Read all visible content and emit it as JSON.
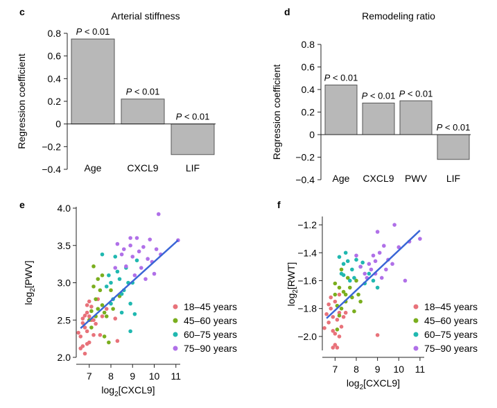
{
  "chart_data": [
    {
      "panel": "c",
      "type": "bar",
      "title": "Arterial stiffness",
      "ylabel": "Regression coefficient",
      "categories": [
        "Age",
        "CXCL9",
        "LIF"
      ],
      "values": [
        0.75,
        0.22,
        -0.27
      ],
      "annotations": [
        "P < 0.01",
        "P < 0.01",
        "P < 0.01"
      ],
      "yticks": [
        "−0.4",
        "−0.2",
        "0",
        "0.2",
        "0.4",
        "0.6",
        "0.8"
      ],
      "ylim": [
        -0.4,
        0.8
      ],
      "bar_color": "#b8b8b8"
    },
    {
      "panel": "d",
      "type": "bar",
      "title": "Remodeling ratio",
      "ylabel": "Regression coefficient",
      "categories": [
        "Age",
        "CXCL9",
        "PWV",
        "LIF"
      ],
      "values": [
        0.44,
        0.28,
        0.3,
        -0.22
      ],
      "annotations": [
        "P < 0.01",
        "P < 0.01",
        "P < 0.01",
        "P < 0.01"
      ],
      "yticks": [
        "−0.4",
        "−0.2",
        "0",
        "0.2",
        "0.4",
        "0.6",
        "0.8"
      ],
      "ylim": [
        -0.4,
        0.8
      ],
      "bar_color": "#b8b8b8"
    },
    {
      "panel": "e",
      "type": "scatter",
      "xlabel": "log2[CXCL9]",
      "ylabel": "log2[PWV]",
      "xticks": [
        "7",
        "8",
        "9",
        "10",
        "11"
      ],
      "yticks": [
        "2.0",
        "2.5",
        "3.0",
        "3.5",
        "4.0"
      ],
      "xlim": [
        6.4,
        11.2
      ],
      "ylim": [
        2.0,
        4.0
      ],
      "regression": [
        [
          6.6,
          2.39
        ],
        [
          11.1,
          3.57
        ]
      ],
      "series": [
        {
          "name": "18–45 years",
          "color": "#e8727a",
          "points": [
            [
              6.5,
              2.33
            ],
            [
              6.6,
              2.28
            ],
            [
              6.7,
              2.52
            ],
            [
              6.8,
              2.56
            ],
            [
              6.7,
              2.46
            ],
            [
              6.9,
              2.6
            ],
            [
              6.8,
              2.4
            ],
            [
              7.0,
              2.55
            ],
            [
              7.1,
              2.5
            ],
            [
              6.9,
              2.7
            ],
            [
              7.0,
              2.75
            ],
            [
              7.2,
              2.3
            ],
            [
              7.3,
              2.45
            ],
            [
              6.8,
              2.05
            ],
            [
              6.6,
              2.12
            ],
            [
              7.0,
              2.2
            ],
            [
              7.5,
              2.3
            ],
            [
              7.2,
              2.5
            ],
            [
              6.9,
              2.35
            ],
            [
              7.8,
              2.65
            ],
            [
              7.6,
              2.55
            ],
            [
              8.2,
              2.52
            ],
            [
              8.3,
              2.22
            ],
            [
              7.1,
              2.68
            ],
            [
              6.7,
              2.15
            ],
            [
              7.4,
              2.78
            ],
            [
              6.9,
              2.18
            ]
          ]
        },
        {
          "name": "45–60 years",
          "color": "#7aae1e",
          "points": [
            [
              7.1,
              2.62
            ],
            [
              7.2,
              3.22
            ],
            [
              7.3,
              2.78
            ],
            [
              7.4,
              2.65
            ],
            [
              7.0,
              2.5
            ],
            [
              7.5,
              2.9
            ],
            [
              7.6,
              2.7
            ],
            [
              7.7,
              2.28
            ],
            [
              7.8,
              2.55
            ],
            [
              8.0,
              2.9
            ],
            [
              8.1,
              2.65
            ],
            [
              7.4,
              3.05
            ],
            [
              7.3,
              2.55
            ],
            [
              7.9,
              2.2
            ],
            [
              7.2,
              2.95
            ],
            [
              7.6,
              3.1
            ],
            [
              8.4,
              2.82
            ],
            [
              7.1,
              2.4
            ],
            [
              7.7,
              2.6
            ]
          ]
        },
        {
          "name": "60–75 years",
          "color": "#20b8b0",
          "points": [
            [
              7.6,
              3.38
            ],
            [
              7.8,
              2.95
            ],
            [
              8.0,
              3.0
            ],
            [
              8.2,
              3.35
            ],
            [
              8.4,
              3.05
            ],
            [
              8.5,
              2.85
            ],
            [
              8.6,
              2.9
            ],
            [
              8.8,
              3.0
            ],
            [
              8.9,
              2.72
            ],
            [
              9.1,
              2.58
            ],
            [
              8.0,
              2.72
            ],
            [
              8.3,
              3.15
            ],
            [
              8.7,
              3.2
            ],
            [
              7.9,
              3.1
            ],
            [
              8.9,
              2.35
            ],
            [
              9.0,
              3.0
            ],
            [
              8.1,
              2.78
            ],
            [
              8.5,
              2.6
            ],
            [
              9.2,
              3.3
            ]
          ]
        },
        {
          "name": "75–90 years",
          "color": "#b070e8",
          "points": [
            [
              8.2,
              3.2
            ],
            [
              8.3,
              3.52
            ],
            [
              8.5,
              3.38
            ],
            [
              8.7,
              3.22
            ],
            [
              8.9,
              3.5
            ],
            [
              9.0,
              3.35
            ],
            [
              9.2,
              3.6
            ],
            [
              9.4,
              3.2
            ],
            [
              9.6,
              3.05
            ],
            [
              9.8,
              3.58
            ],
            [
              9.9,
              3.28
            ],
            [
              10.0,
              3.12
            ],
            [
              10.2,
              3.92
            ],
            [
              10.3,
              3.38
            ],
            [
              9.5,
              3.48
            ],
            [
              9.1,
              3.1
            ],
            [
              8.6,
              3.45
            ],
            [
              8.9,
              3.6
            ],
            [
              9.3,
              3.42
            ],
            [
              10.1,
              3.45
            ],
            [
              9.7,
              3.32
            ],
            [
              11.1,
              3.57
            ]
          ]
        }
      ]
    },
    {
      "panel": "f",
      "type": "scatter",
      "xlabel": "log2[CXCL9]",
      "ylabel": "log2[RWT]",
      "xticks": [
        "7",
        "8",
        "9",
        "10",
        "11"
      ],
      "yticks": [
        "−2.0",
        "−1.8",
        "−1.6",
        "−1.4",
        "−1.2"
      ],
      "xlim": [
        6.4,
        11.2
      ],
      "ylim": [
        -2.1,
        -1.15
      ],
      "regression": [
        [
          6.6,
          -1.87
        ],
        [
          11.0,
          -1.24
        ]
      ],
      "series": [
        {
          "name": "18–45 years",
          "color": "#e8727a",
          "points": [
            [
              6.5,
              -1.94
            ],
            [
              6.6,
              -1.84
            ],
            [
              6.7,
              -1.9
            ],
            [
              6.8,
              -1.8
            ],
            [
              6.9,
              -1.96
            ],
            [
              7.0,
              -2.06
            ],
            [
              7.1,
              -1.88
            ],
            [
              7.2,
              -1.83
            ],
            [
              6.8,
              -1.72
            ],
            [
              7.0,
              -1.98
            ],
            [
              7.3,
              -1.93
            ],
            [
              6.7,
              -1.77
            ],
            [
              7.2,
              -2.0
            ],
            [
              7.4,
              -1.86
            ],
            [
              6.9,
              -1.86
            ],
            [
              7.0,
              -1.75
            ],
            [
              7.1,
              -2.08
            ],
            [
              9.0,
              -1.99
            ],
            [
              7.5,
              -1.83
            ],
            [
              6.9,
              -2.08
            ],
            [
              7.2,
              -1.7
            ]
          ]
        },
        {
          "name": "45–60 years",
          "color": "#7aae1e",
          "points": [
            [
              7.0,
              -1.7
            ],
            [
              7.1,
              -1.78
            ],
            [
              7.2,
              -1.65
            ],
            [
              7.3,
              -1.8
            ],
            [
              7.0,
              -1.62
            ],
            [
              7.4,
              -1.68
            ],
            [
              7.5,
              -1.75
            ],
            [
              7.2,
              -1.85
            ],
            [
              7.6,
              -1.58
            ],
            [
              7.8,
              -1.72
            ],
            [
              8.0,
              -1.6
            ],
            [
              8.2,
              -1.75
            ],
            [
              7.3,
              -1.52
            ],
            [
              7.1,
              -1.95
            ],
            [
              7.7,
              -1.65
            ],
            [
              7.5,
              -1.7
            ],
            [
              7.9,
              -1.82
            ],
            [
              8.1,
              -1.7
            ]
          ]
        },
        {
          "name": "60–75 years",
          "color": "#20b8b0",
          "points": [
            [
              7.2,
              -1.43
            ],
            [
              7.4,
              -1.48
            ],
            [
              7.6,
              -1.46
            ],
            [
              7.8,
              -1.52
            ],
            [
              8.0,
              -1.45
            ],
            [
              7.3,
              -1.55
            ],
            [
              7.7,
              -1.6
            ],
            [
              7.5,
              -1.4
            ],
            [
              8.2,
              -1.5
            ],
            [
              8.4,
              -1.62
            ],
            [
              8.6,
              -1.55
            ],
            [
              8.8,
              -1.6
            ],
            [
              9.0,
              -1.65
            ],
            [
              7.9,
              -1.58
            ],
            [
              8.3,
              -1.47
            ],
            [
              7.4,
              -1.56
            ]
          ]
        },
        {
          "name": "75–90 years",
          "color": "#b070e8",
          "points": [
            [
              8.0,
              -1.42
            ],
            [
              8.2,
              -1.5
            ],
            [
              8.4,
              -1.55
            ],
            [
              8.6,
              -1.48
            ],
            [
              8.7,
              -1.52
            ],
            [
              8.9,
              -1.46
            ],
            [
              9.0,
              -1.25
            ],
            [
              9.1,
              -1.4
            ],
            [
              9.2,
              -1.58
            ],
            [
              9.4,
              -1.52
            ],
            [
              9.5,
              -1.45
            ],
            [
              9.7,
              -1.48
            ],
            [
              9.8,
              -1.2
            ],
            [
              10.0,
              -1.36
            ],
            [
              10.3,
              -1.6
            ],
            [
              10.5,
              -1.32
            ],
            [
              11.0,
              -1.3
            ],
            [
              8.5,
              -1.58
            ],
            [
              8.8,
              -1.42
            ],
            [
              9.3,
              -1.35
            ],
            [
              8.9,
              -1.55
            ]
          ]
        }
      ]
    }
  ]
}
